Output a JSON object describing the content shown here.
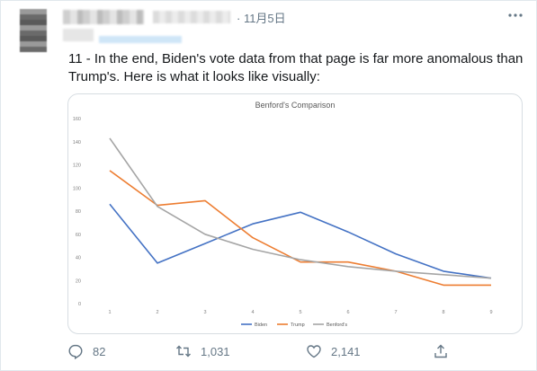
{
  "tweet": {
    "date": "· 11月5日",
    "text": "11 - In the end, Biden's vote data from that page is far more anomalous than Trump's. Here is what it looks like visually:"
  },
  "actions": {
    "replies": "82",
    "retweets": "1,031",
    "likes": "2,141"
  },
  "chart_data": {
    "type": "line",
    "title": "Benford's Comparison",
    "x": [
      1,
      2,
      3,
      4,
      5,
      6,
      7,
      8,
      9
    ],
    "ylim": [
      0,
      160
    ],
    "yticks": [
      0,
      20,
      40,
      60,
      80,
      100,
      120,
      140,
      160
    ],
    "grid": false,
    "legend": "bottom",
    "series": [
      {
        "name": "Biden",
        "color": "#4472c4",
        "values": [
          86,
          35,
          52,
          69,
          79,
          62,
          43,
          28,
          22
        ]
      },
      {
        "name": "Trump",
        "color": "#ed7d31",
        "values": [
          115,
          85,
          89,
          57,
          36,
          36,
          28,
          16,
          16
        ]
      },
      {
        "name": "Benford's",
        "color": "#a5a5a5",
        "values": [
          143,
          84,
          60,
          47,
          38,
          32,
          28,
          25,
          22
        ]
      }
    ]
  }
}
